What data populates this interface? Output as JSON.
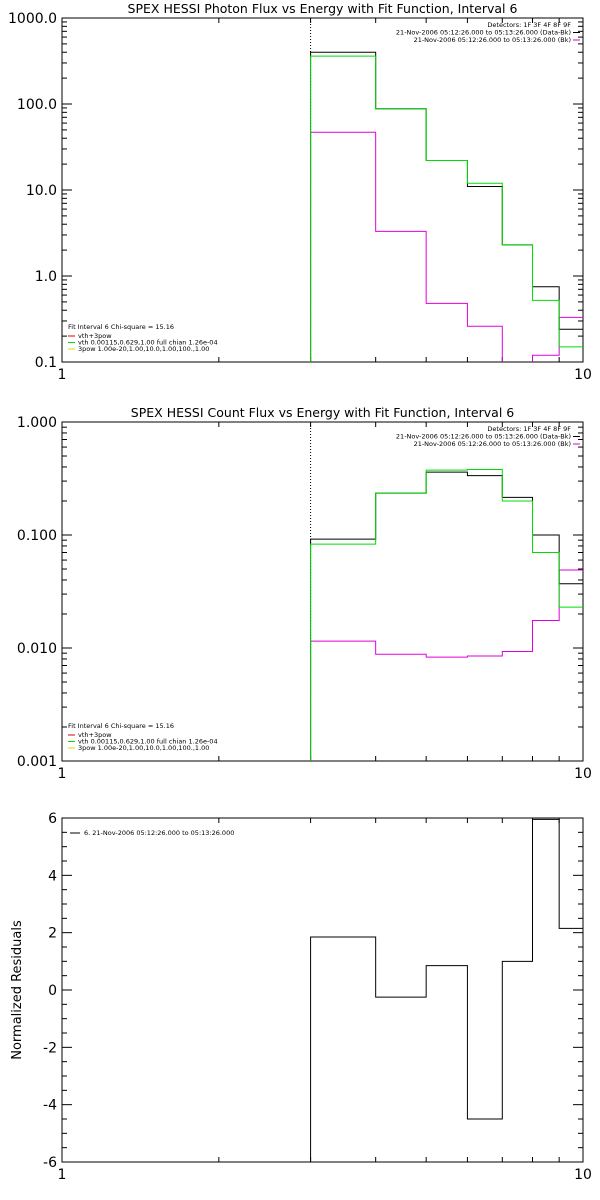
{
  "chart_data": [
    {
      "type": "line",
      "title": "SPEX HESSI Photon Flux vs Energy with Fit Function, Interval 6",
      "xlabel": "",
      "ylabel": "",
      "x_scale": "log",
      "y_scale": "log",
      "xlim": [
        1,
        10
      ],
      "ylim": [
        0.1,
        1000
      ],
      "x_ticks": [
        "1",
        "10"
      ],
      "y_ticks": [
        "0.1",
        "1.0",
        "10.0",
        "100.0",
        "1000.0"
      ],
      "vline_x": 3,
      "legend_top": [
        "Detectors: 1F 3F 4F 8F 9F",
        "21-Nov-2006 05:12:26.000 to 05:13:26.000 (Data-Bk)",
        "21-Nov-2006 05:12:26.000 to 05:13:26.000 (Bk)"
      ],
      "legend_bottom_title": "Fit Interval  6    Chi-square = 15.16",
      "legend_bottom": [
        "vth+3pow",
        "vth 0.00115,0.629,1.00  full chian 1.26e-04",
        "3pow 1.00e-20,1.00,10.0,1.00,100.,1.00"
      ],
      "bin_edges": [
        3,
        4,
        5,
        6,
        7,
        8,
        9,
        10
      ],
      "series": [
        {
          "name": "21-Nov-2006 05:12:26.000 to 05:13:26.000 (Data-Bk)",
          "color": "#000000",
          "values": [
            400,
            88,
            22,
            11,
            2.3,
            0.75,
            0.24
          ]
        },
        {
          "name": "vth+3pow",
          "color": "#00dd00",
          "values": [
            360,
            88,
            22,
            12,
            2.3,
            0.52,
            0.15
          ]
        },
        {
          "name": "21-Nov-2006 05:12:26.000 to 05:13:26.000 (Bk)",
          "color": "#dd00dd",
          "values": [
            47,
            3.3,
            0.48,
            0.26,
            0.097,
            0.12,
            0.33
          ]
        }
      ]
    },
    {
      "type": "line",
      "title": "SPEX HESSI Count Flux vs Energy with Fit Function, Interval 6",
      "xlabel": "",
      "ylabel": "",
      "x_scale": "log",
      "y_scale": "log",
      "xlim": [
        1,
        10
      ],
      "ylim": [
        0.001,
        1
      ],
      "x_ticks": [
        "1",
        "10"
      ],
      "y_ticks": [
        "0.001",
        "0.010",
        "0.100",
        "1.000"
      ],
      "vline_x": 3,
      "legend_top": [
        "Detectors: 1F 3F 4F 8F 9F",
        "21-Nov-2006 05:12:26.000 to 05:13:26.000 (Data-Bk)",
        "21-Nov-2006 05:12:26.000 to 05:13:26.000 (Bk)"
      ],
      "legend_bottom_title": "Fit Interval  6    Chi-square = 15.16",
      "legend_bottom": [
        "vth+3pow",
        "vth 0.00115,0.629,1.00  full chian 1.26e-04",
        "3pow 1.00e-20,1.00,10.0,1.00,100.,1.00"
      ],
      "bin_edges": [
        3,
        4,
        5,
        6,
        7,
        8,
        9,
        10
      ],
      "series": [
        {
          "name": "21-Nov-2006 05:12:26.000 to 05:13:26.000 (Data-Bk)",
          "color": "#000000",
          "values": [
            0.092,
            0.235,
            0.36,
            0.335,
            0.215,
            0.1,
            0.037
          ]
        },
        {
          "name": "vth+3pow",
          "color": "#00dd00",
          "values": [
            0.083,
            0.235,
            0.375,
            0.38,
            0.2,
            0.07,
            0.023
          ]
        },
        {
          "name": "21-Nov-2006 05:12:26.000 to 05:13:26.000 (Bk)",
          "color": "#dd00dd",
          "values": [
            0.0115,
            0.0088,
            0.0083,
            0.0085,
            0.0093,
            0.0175,
            0.049
          ]
        }
      ]
    },
    {
      "type": "line",
      "title": "",
      "xlabel": "",
      "ylabel": "Normalized Residuals",
      "x_scale": "log",
      "y_scale": "linear",
      "xlim": [
        1,
        10
      ],
      "ylim": [
        -6,
        6
      ],
      "x_ticks": [
        "1",
        "10"
      ],
      "y_ticks": [
        "-6",
        "-4",
        "-2",
        "0",
        "2",
        "4",
        "6"
      ],
      "legend_top": [
        "6. 21-Nov-2006 05:12:26.000 to 05:13:26.000"
      ],
      "bin_edges": [
        3,
        4,
        5,
        6,
        7,
        8,
        9,
        10
      ],
      "series": [
        {
          "name": "6. 21-Nov-2006 05:12:26.000 to 05:13:26.000",
          "color": "#000000",
          "values": [
            1.85,
            -0.25,
            0.85,
            -4.5,
            1.0,
            5.95,
            2.15
          ]
        }
      ]
    }
  ],
  "colors": {
    "data": "#000000",
    "model": "#00dd00",
    "background": "#dd00dd"
  }
}
